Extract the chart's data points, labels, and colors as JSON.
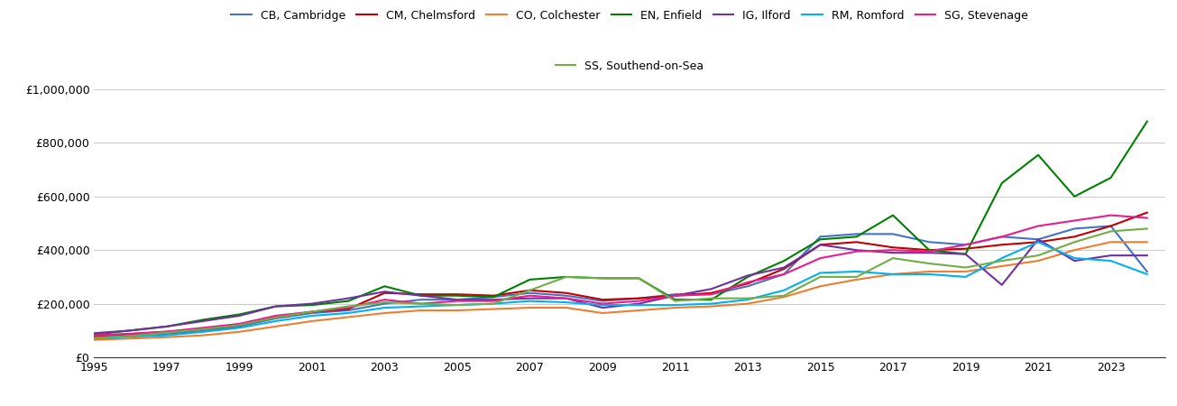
{
  "years": [
    1995,
    1996,
    1997,
    1998,
    1999,
    2000,
    2001,
    2002,
    2003,
    2004,
    2005,
    2006,
    2007,
    2008,
    2009,
    2010,
    2011,
    2012,
    2013,
    2014,
    2015,
    2016,
    2017,
    2018,
    2019,
    2020,
    2021,
    2022,
    2023,
    2024
  ],
  "series": {
    "CB, Cambridge": {
      "color": "#4472c4",
      "values": [
        75000,
        82000,
        88000,
        98000,
        115000,
        145000,
        165000,
        175000,
        200000,
        215000,
        215000,
        225000,
        240000,
        230000,
        210000,
        220000,
        235000,
        235000,
        265000,
        310000,
        450000,
        460000,
        460000,
        430000,
        420000,
        450000,
        440000,
        480000,
        490000,
        320000
      ]
    },
    "CM, Chelmsford": {
      "color": "#c00000",
      "values": [
        80000,
        87000,
        95000,
        105000,
        120000,
        148000,
        170000,
        180000,
        240000,
        235000,
        235000,
        230000,
        250000,
        240000,
        215000,
        220000,
        230000,
        240000,
        275000,
        330000,
        420000,
        430000,
        410000,
        400000,
        405000,
        420000,
        430000,
        450000,
        490000,
        540000
      ]
    },
    "CO, Colchester": {
      "color": "#ed7d31",
      "values": [
        65000,
        70000,
        75000,
        82000,
        95000,
        115000,
        135000,
        150000,
        165000,
        175000,
        175000,
        180000,
        185000,
        185000,
        165000,
        175000,
        185000,
        190000,
        200000,
        225000,
        265000,
        290000,
        310000,
        320000,
        320000,
        340000,
        360000,
        400000,
        430000,
        430000
      ]
    },
    "EN, Enfield": {
      "color": "#008000",
      "values": [
        85000,
        100000,
        115000,
        140000,
        160000,
        190000,
        195000,
        210000,
        265000,
        230000,
        230000,
        225000,
        290000,
        300000,
        295000,
        295000,
        215000,
        215000,
        300000,
        360000,
        440000,
        450000,
        530000,
        400000,
        385000,
        650000,
        755000,
        600000,
        670000,
        880000
      ]
    },
    "IG, Ilford": {
      "color": "#7030a0",
      "values": [
        90000,
        100000,
        115000,
        135000,
        155000,
        190000,
        200000,
        220000,
        245000,
        230000,
        215000,
        215000,
        220000,
        220000,
        185000,
        200000,
        230000,
        255000,
        305000,
        335000,
        420000,
        400000,
        390000,
        390000,
        385000,
        270000,
        440000,
        360000,
        380000,
        380000
      ]
    },
    "RM, Romford": {
      "color": "#00b0f0",
      "values": [
        70000,
        77000,
        82000,
        95000,
        110000,
        135000,
        155000,
        165000,
        185000,
        190000,
        195000,
        200000,
        210000,
        205000,
        195000,
        195000,
        195000,
        200000,
        215000,
        250000,
        315000,
        320000,
        310000,
        310000,
        300000,
        370000,
        430000,
        370000,
        360000,
        310000
      ]
    },
    "SG, Stevenage": {
      "color": "#e91e8c",
      "values": [
        82000,
        88000,
        96000,
        110000,
        125000,
        155000,
        170000,
        185000,
        215000,
        200000,
        210000,
        210000,
        230000,
        220000,
        200000,
        210000,
        230000,
        235000,
        280000,
        310000,
        370000,
        395000,
        400000,
        395000,
        420000,
        450000,
        490000,
        510000,
        530000,
        520000
      ]
    },
    "SS, Southend-on-Sea": {
      "color": "#70ad47",
      "values": [
        72000,
        80000,
        92000,
        105000,
        120000,
        148000,
        170000,
        190000,
        205000,
        200000,
        195000,
        200000,
        250000,
        300000,
        295000,
        295000,
        210000,
        220000,
        220000,
        230000,
        300000,
        300000,
        370000,
        350000,
        335000,
        360000,
        380000,
        430000,
        470000,
        480000
      ]
    }
  },
  "ylim": [
    0,
    1000000
  ],
  "yticks": [
    0,
    200000,
    400000,
    600000,
    800000,
    1000000
  ],
  "ytick_labels": [
    "£0",
    "£200,000",
    "£400,000",
    "£600,000",
    "£800,000",
    "£1,000,000"
  ],
  "xticks": [
    1995,
    1997,
    1999,
    2001,
    2003,
    2005,
    2007,
    2009,
    2011,
    2013,
    2015,
    2017,
    2019,
    2021,
    2023
  ],
  "legend_row1": [
    "CB, Cambridge",
    "CM, Chelmsford",
    "CO, Colchester",
    "EN, Enfield",
    "IG, Ilford",
    "RM, Romford",
    "SG, Stevenage"
  ],
  "legend_row2": [
    "SS, Southend-on-Sea"
  ],
  "background_color": "#ffffff",
  "grid_color": "#cccccc",
  "line_width": 1.5
}
